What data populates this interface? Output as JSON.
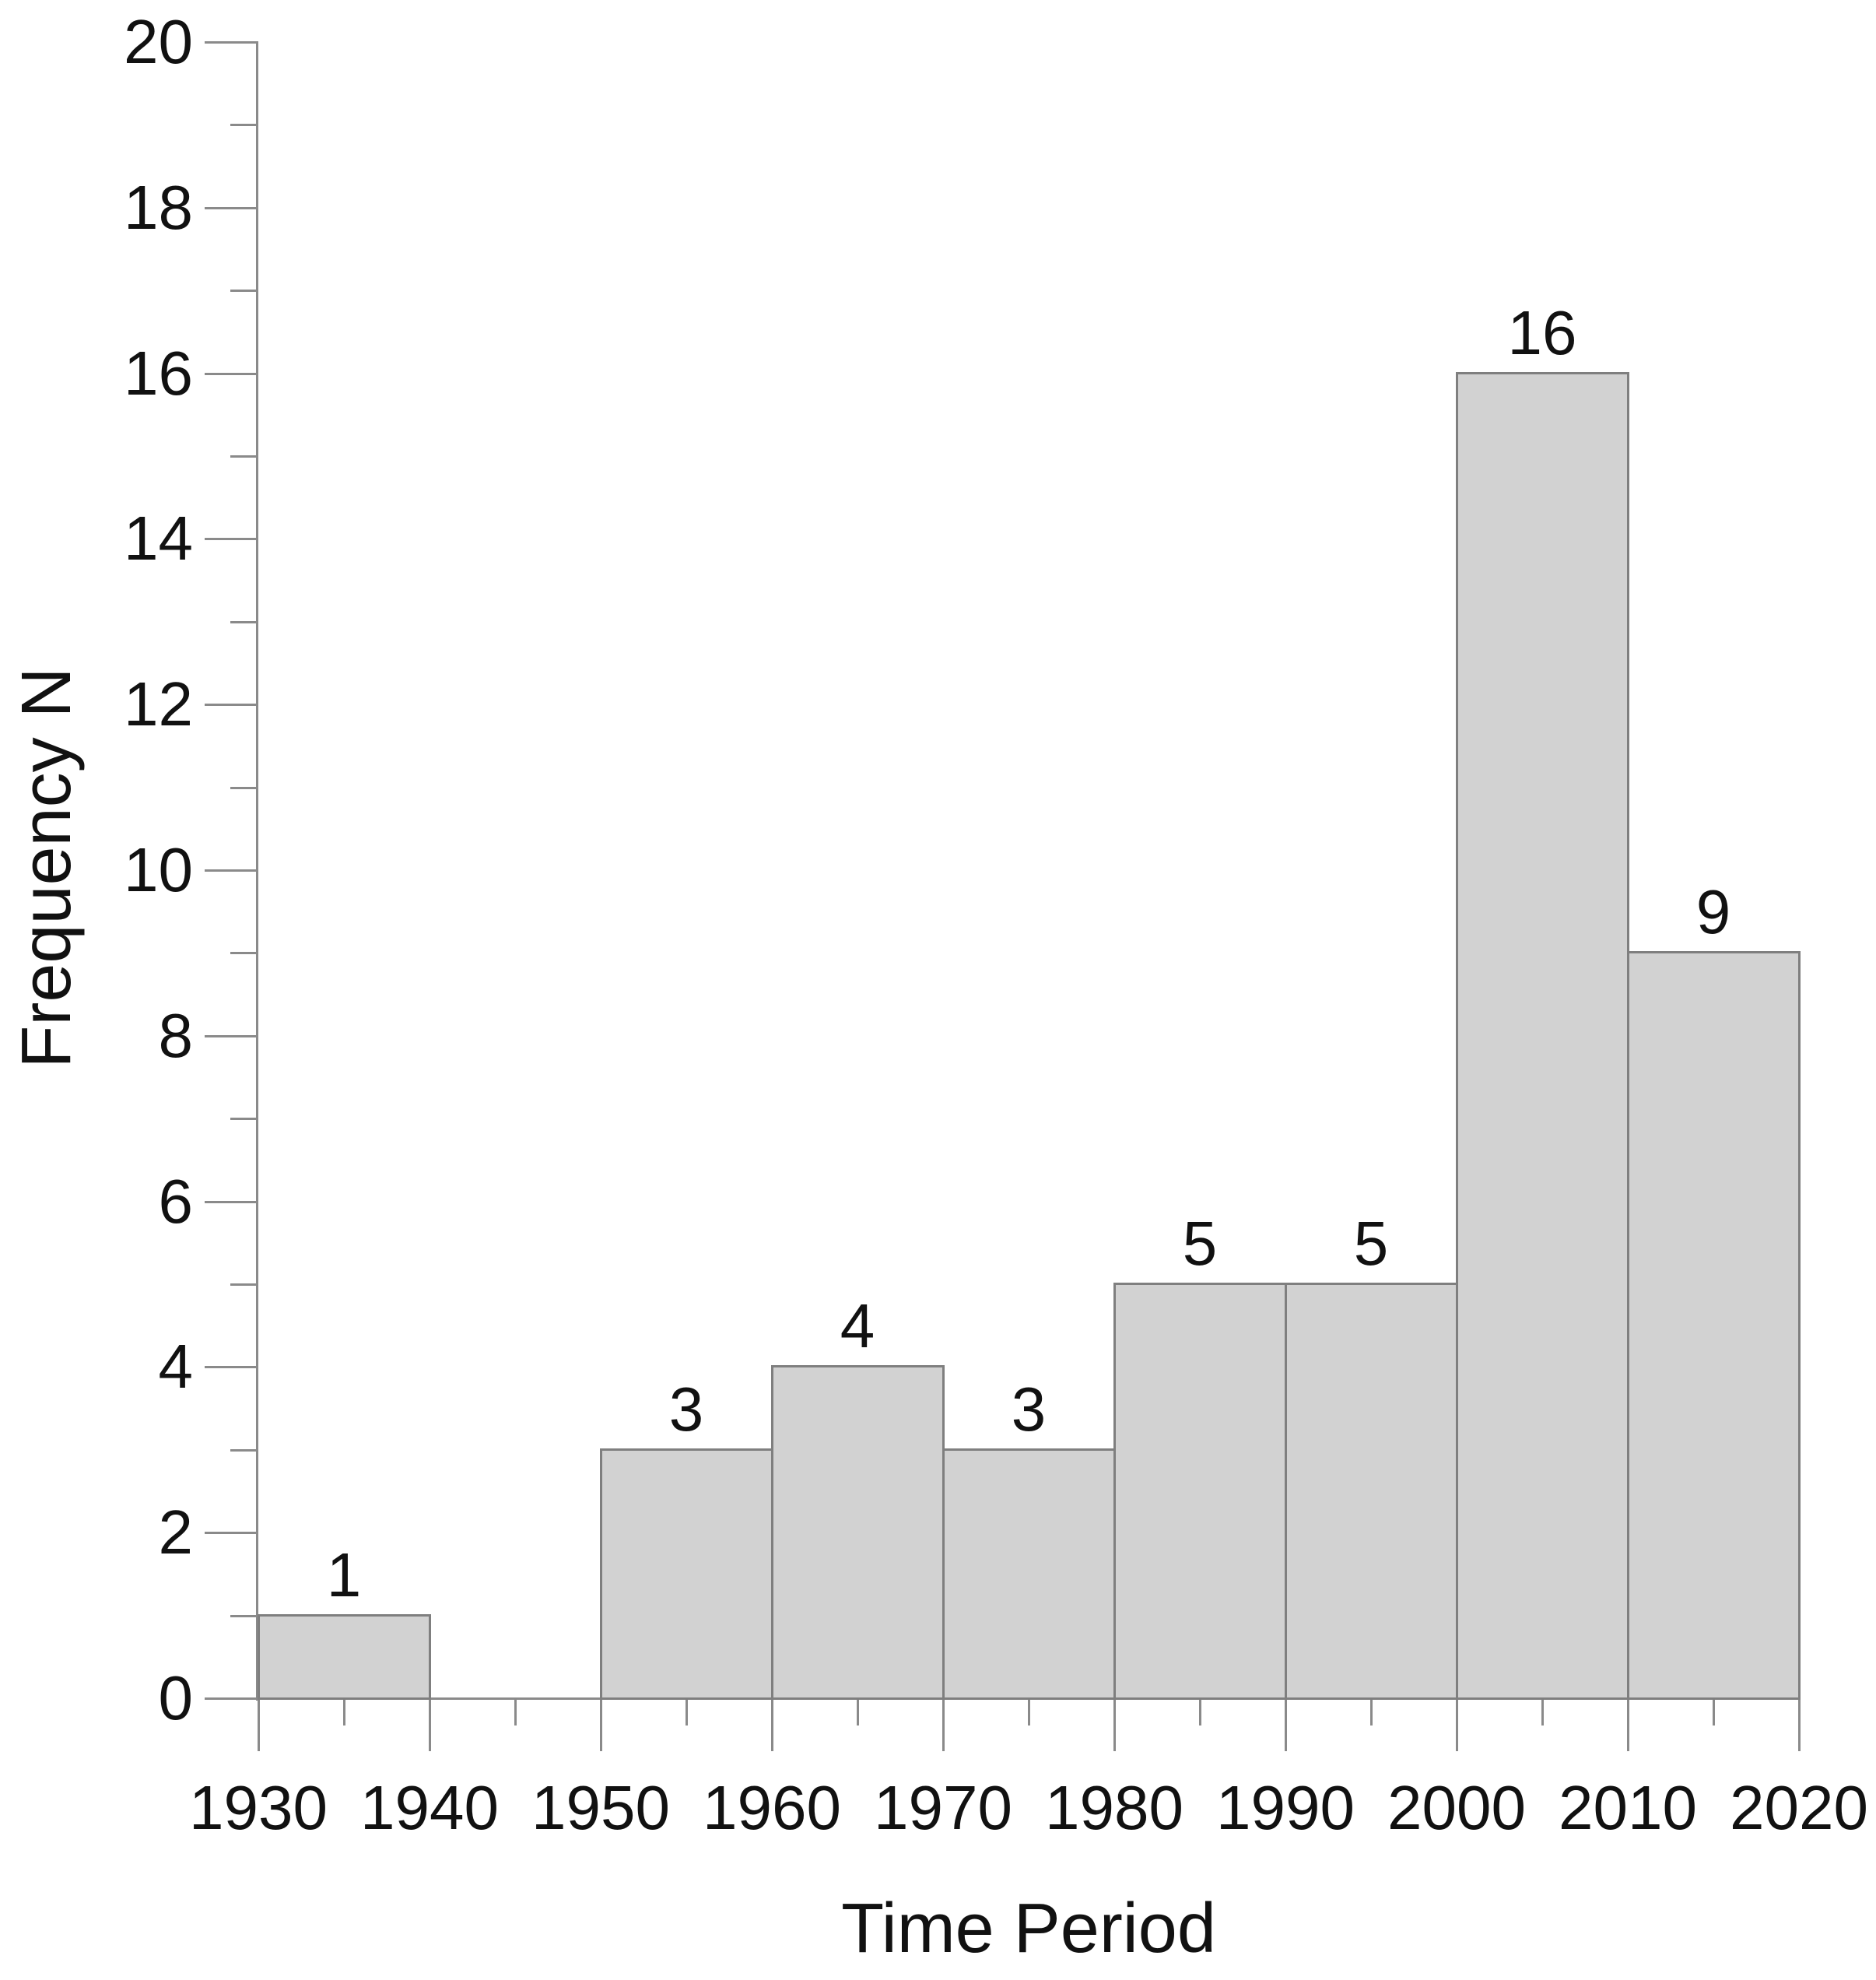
{
  "chart_data": {
    "type": "bar",
    "title": "",
    "xlabel": "Time Period",
    "ylabel": "Frequency N",
    "bins": [
      {
        "start": 1930,
        "end": 1940,
        "value": 1
      },
      {
        "start": 1940,
        "end": 1950,
        "value": 0
      },
      {
        "start": 1950,
        "end": 1960,
        "value": 3
      },
      {
        "start": 1960,
        "end": 1970,
        "value": 4
      },
      {
        "start": 1970,
        "end": 1980,
        "value": 3
      },
      {
        "start": 1980,
        "end": 1990,
        "value": 5
      },
      {
        "start": 1990,
        "end": 2000,
        "value": 5
      },
      {
        "start": 2000,
        "end": 2010,
        "value": 16
      },
      {
        "start": 2010,
        "end": 2020,
        "value": 9
      }
    ],
    "bar_value_labels": [
      "1",
      "3",
      "4",
      "3",
      "5",
      "5",
      "16",
      "9"
    ],
    "xlim": [
      1930,
      2020
    ],
    "ylim": [
      0,
      20
    ],
    "x_ticks_major": [
      1930,
      1940,
      1950,
      1960,
      1970,
      1980,
      1990,
      2000,
      2010,
      2020
    ],
    "x_ticks_minor": [
      1935,
      1945,
      1955,
      1965,
      1975,
      1985,
      1995,
      2005,
      2015
    ],
    "y_ticks_major": [
      0,
      2,
      4,
      6,
      8,
      10,
      12,
      14,
      16,
      18,
      20
    ],
    "y_ticks_minor": [
      1,
      3,
      5,
      7,
      9,
      11,
      13,
      15,
      17,
      19
    ],
    "grid": false,
    "legend": null,
    "colors": {
      "bar_fill": "#d2d2d2",
      "bar_border": "#7f7f7f",
      "axis": "#8a8a8a",
      "text": "#111111",
      "background": "#ffffff"
    }
  }
}
